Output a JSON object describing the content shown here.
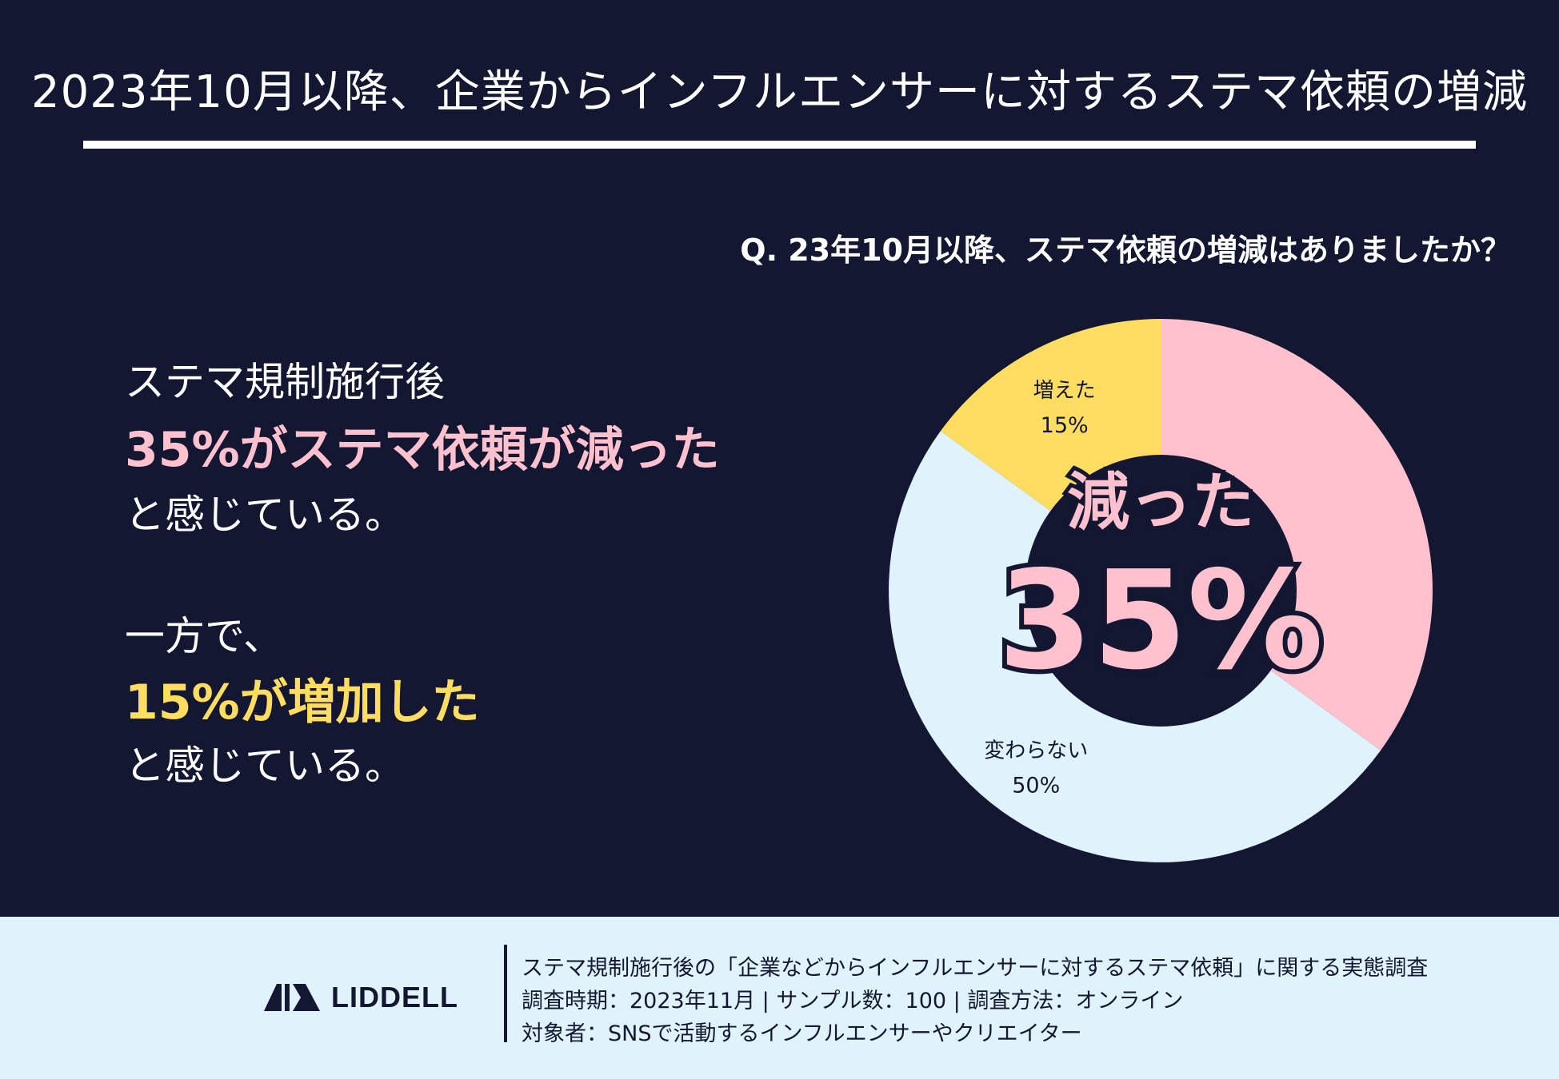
{
  "title": "2023年10月以降、企業からインフルエンサーに対するステマ依頼の増減",
  "question": "Q. 23年10月以降、ステマ依頼の増減はありましたか？",
  "message": {
    "line1": "ステマ規制施行後",
    "line2": "35%がステマ依頼が減った",
    "line3": "と感じている。",
    "line4": "一方で、",
    "line5": "15%が増加した",
    "line6": "と感じている。"
  },
  "center": {
    "label": "減った",
    "value": "35%"
  },
  "colors": {
    "background": "#131732",
    "decreased": "#ffc1cd",
    "increased": "#ffdd60",
    "unchanged": "#e0f3fc",
    "footer": "#e0f3fc"
  },
  "chart_data": {
    "type": "pie",
    "donut": true,
    "start_angle_deg": 0,
    "direction": "clockwise",
    "slices": [
      {
        "label": "減った",
        "value": 35,
        "value_label": "",
        "color": "#ffc1cd"
      },
      {
        "label": "変わらない",
        "value": 50,
        "value_label": "50%",
        "color": "#e0f3fc"
      },
      {
        "label": "増えた",
        "value": 15,
        "value_label": "15%",
        "color": "#ffdd60"
      }
    ]
  },
  "footer": {
    "logo": "LIDDELL",
    "line1": "ステマ規制施行後の「企業などからインフルエンサーに対するステマ依頼」に関する実態調査",
    "line2": "調査時期：2023年11月 | サンプル数：100 | 調査方法：オンライン",
    "line3": "対象者：SNSで活動するインフルエンサーやクリエイター"
  }
}
